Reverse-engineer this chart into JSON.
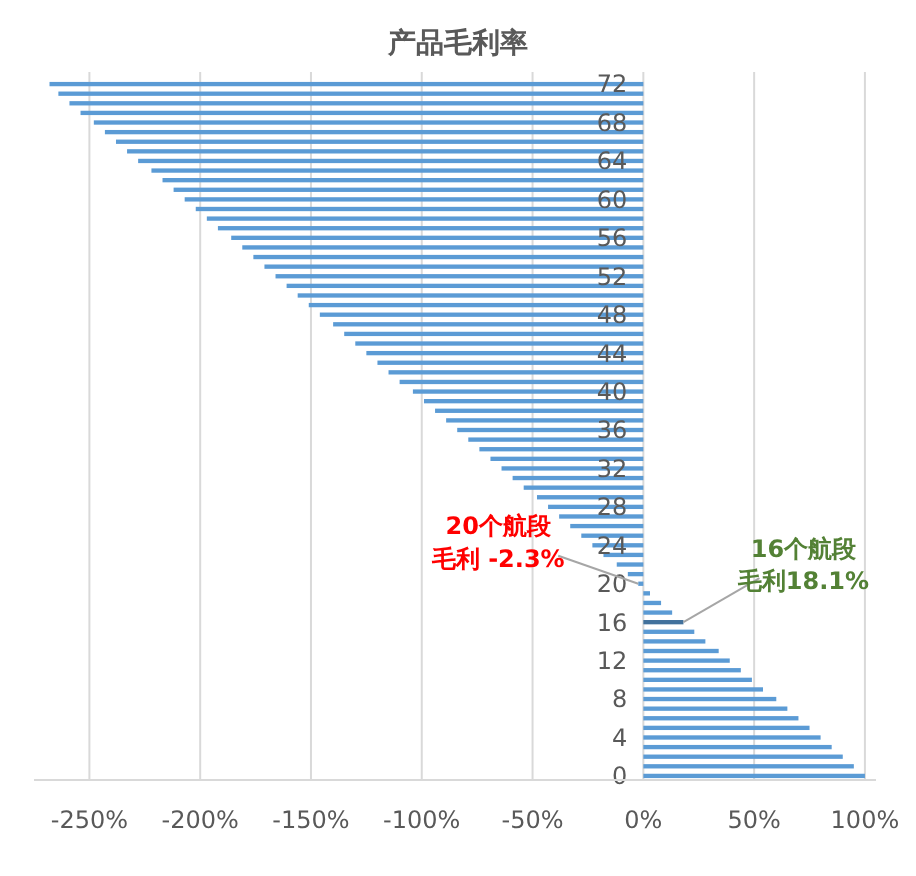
{
  "chart_data": {
    "type": "bar",
    "orientation": "horizontal",
    "title": "产品毛利率",
    "categories": [
      "72",
      null,
      null,
      null,
      "68",
      null,
      null,
      null,
      "64",
      null,
      null,
      null,
      "60",
      null,
      null,
      null,
      "56",
      null,
      null,
      null,
      "52",
      null,
      null,
      null,
      "48",
      null,
      null,
      null,
      "44",
      null,
      null,
      null,
      "40",
      null,
      null,
      null,
      "36",
      null,
      null,
      null,
      "32",
      null,
      null,
      null,
      "28",
      null,
      null,
      null,
      "24",
      null,
      null,
      null,
      "20",
      null,
      null,
      null,
      "16",
      null,
      null,
      null,
      "12",
      null,
      null,
      null,
      "8",
      null,
      null,
      null,
      "4",
      null,
      null,
      null,
      "0"
    ],
    "values": [
      -268,
      -264,
      -259,
      -254,
      -248,
      -243,
      -238,
      -233,
      -228,
      -222,
      -217,
      -212,
      -207,
      -202,
      -197,
      -192,
      -186,
      -181,
      -176,
      -171,
      -166,
      -161,
      -156,
      -151,
      -146,
      -140,
      -135,
      -130,
      -125,
      -120,
      -115,
      -110,
      -104,
      -99,
      -94,
      -89,
      -84,
      -79,
      -74,
      -69,
      -64,
      -59,
      -54,
      -48,
      -43,
      -38,
      -33,
      -28,
      -23,
      -18,
      -12,
      -7,
      -2.3,
      3,
      8,
      13,
      18.1,
      23,
      28,
      34,
      39,
      44,
      49,
      54,
      60,
      65,
      70,
      75,
      80,
      85,
      90,
      95,
      100
    ],
    "colors": [
      "#5b9bd5",
      "#5b9bd5",
      "#5b9bd5",
      "#5b9bd5",
      "#5b9bd5",
      "#5b9bd5",
      "#5b9bd5",
      "#5b9bd5",
      "#5b9bd5",
      "#5b9bd5",
      "#5b9bd5",
      "#5b9bd5",
      "#5b9bd5",
      "#5b9bd5",
      "#5b9bd5",
      "#5b9bd5",
      "#5b9bd5",
      "#5b9bd5",
      "#5b9bd5",
      "#5b9bd5",
      "#5b9bd5",
      "#5b9bd5",
      "#5b9bd5",
      "#5b9bd5",
      "#5b9bd5",
      "#5b9bd5",
      "#5b9bd5",
      "#5b9bd5",
      "#5b9bd5",
      "#5b9bd5",
      "#5b9bd5",
      "#5b9bd5",
      "#5b9bd5",
      "#5b9bd5",
      "#5b9bd5",
      "#5b9bd5",
      "#5b9bd5",
      "#5b9bd5",
      "#5b9bd5",
      "#5b9bd5",
      "#5b9bd5",
      "#5b9bd5",
      "#5b9bd5",
      "#5b9bd5",
      "#5b9bd5",
      "#5b9bd5",
      "#5b9bd5",
      "#5b9bd5",
      "#5b9bd5",
      "#5b9bd5",
      "#5b9bd5",
      "#5b9bd5",
      "#5b9bd5",
      "#5b9bd5",
      "#5b9bd5",
      "#5b9bd5",
      "#41719c",
      "#5b9bd5",
      "#5b9bd5",
      "#5b9bd5",
      "#5b9bd5",
      "#5b9bd5",
      "#5b9bd5",
      "#5b9bd5",
      "#5b9bd5",
      "#5b9bd5",
      "#5b9bd5",
      "#5b9bd5",
      "#5b9bd5",
      "#5b9bd5",
      "#5b9bd5",
      "#5b9bd5",
      "#5b9bd5"
    ],
    "xlim": [
      -275,
      105
    ],
    "xticks": [
      {
        "value": -250,
        "label": "-250%"
      },
      {
        "value": -200,
        "label": "-200%"
      },
      {
        "value": -150,
        "label": "-150%"
      },
      {
        "value": -100,
        "label": "-100%"
      },
      {
        "value": -50,
        "label": "-50%"
      },
      {
        "value": 0,
        "label": "0%"
      },
      {
        "value": 50,
        "label": "50%"
      },
      {
        "value": 100,
        "label": "100%"
      }
    ],
    "grid": "x",
    "annotations": [
      {
        "text": "20个航段毛利 -2.3%",
        "x": -2.3,
        "y": "20"
      },
      {
        "text": "16个航段毛利18.1%",
        "x": 18.1,
        "y": "16"
      }
    ]
  }
}
